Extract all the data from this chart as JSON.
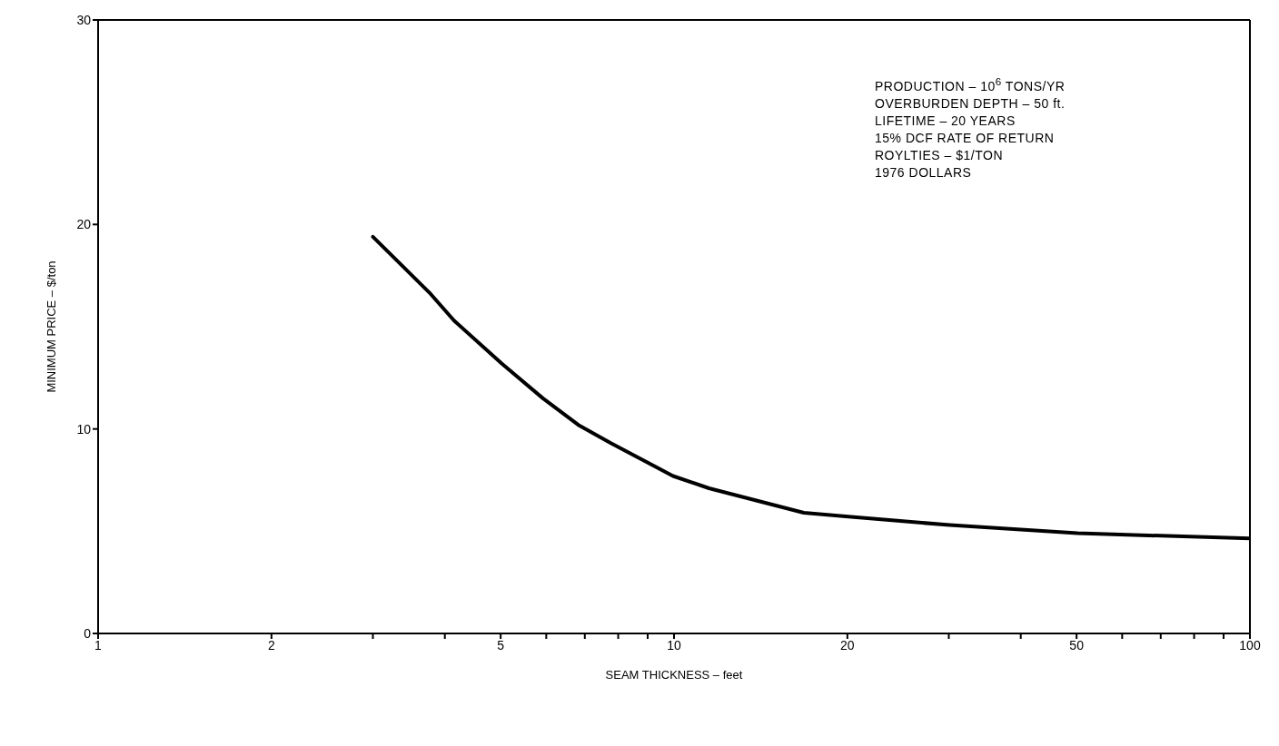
{
  "chart_data": {
    "type": "line",
    "xlabel": "SEAM THICKNESS – feet",
    "ylabel": "MINIMUM PRICE – $/ton",
    "annotations": [
      "PRODUCTION – 10$^{6}$ TONS/YR",
      "OVERBURDEN DEPTH – 50 ft.",
      "LIFETIME – 20 YEARS",
      "15% DCF RATE OF RETURN",
      "ROYLTIES – $1/TON",
      "1976 DOLLARS"
    ],
    "log": "x",
    "xlim": [
      1,
      100
    ],
    "ylim": [
      0,
      30
    ],
    "xticks": [
      1,
      2,
      {
        "value": 3,
        "label": null
      },
      {
        "value": 4,
        "label": null
      },
      5,
      {
        "value": 6,
        "label": null
      },
      {
        "value": 7,
        "label": null
      },
      {
        "value": 8,
        "label": null
      },
      {
        "value": 9,
        "label": null
      },
      10,
      20,
      {
        "value": 30,
        "label": null
      },
      {
        "value": 40,
        "label": null
      },
      50,
      {
        "value": 60,
        "label": null
      },
      {
        "value": 70,
        "label": null
      },
      {
        "value": 80,
        "label": null
      },
      {
        "value": 90,
        "label": null
      },
      100
    ],
    "yticks": [
      0,
      10,
      20,
      30
    ],
    "marker": "none",
    "line_style": "solid",
    "series": [
      {
        "color": "#000000",
        "x": [
          3.0,
          3.78,
          4.15,
          5.02,
          5.92,
          6.82,
          7.78,
          9.96,
          11.5,
          16.8,
          20.3,
          30.1,
          50.2,
          100
        ],
        "values": [
          19.4,
          16.6,
          15.3,
          13.2,
          11.5,
          10.2,
          9.3,
          7.7,
          7.1,
          5.9,
          5.7,
          5.3,
          4.9,
          4.65
        ]
      }
    ]
  }
}
